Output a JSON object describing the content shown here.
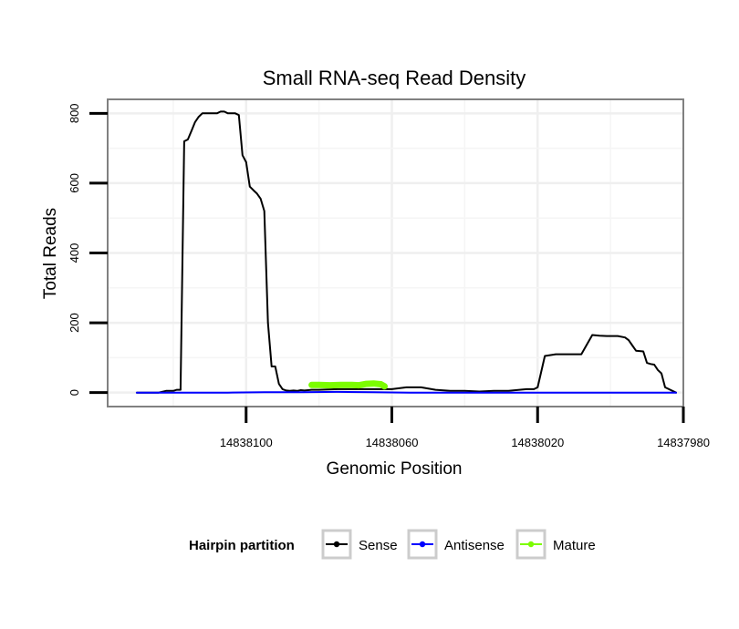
{
  "chart_data": {
    "type": "line",
    "title": "Small RNA-seq Read Density",
    "xlabel": "Genomic Position",
    "ylabel": "Total Reads",
    "xlim": [
      14838138,
      14837980
    ],
    "ylim": [
      -40,
      840
    ],
    "x_reversed": true,
    "grid": true,
    "xticks": [
      14838100,
      14838060,
      14838020,
      14837980
    ],
    "xtick_labels": [
      "14838100",
      "14838060",
      "14838020",
      "14837980"
    ],
    "yticks": [
      0,
      200,
      400,
      600,
      800
    ],
    "ytick_labels": [
      "0",
      "200",
      "400",
      "600",
      "800"
    ],
    "legend": {
      "title": "Hairpin partition",
      "position": "bottom",
      "entries": [
        "Sense",
        "Antisense",
        "Mature"
      ]
    },
    "series": [
      {
        "name": "Sense",
        "color": "#000000",
        "x": [
          14838130,
          14838124,
          14838122,
          14838120,
          14838119,
          14838118,
          14838117,
          14838116,
          14838115,
          14838114,
          14838113,
          14838112,
          14838111,
          14838110,
          14838109,
          14838108,
          14838107,
          14838106,
          14838105,
          14838104,
          14838103,
          14838102,
          14838101,
          14838100,
          14838099,
          14838098,
          14838097,
          14838096,
          14838095,
          14838094,
          14838093,
          14838092,
          14838091,
          14838090,
          14838089,
          14838088,
          14838087,
          14838086,
          14838085,
          14838084,
          14838083,
          14838082,
          14838080,
          14838075,
          14838070,
          14838065,
          14838060,
          14838056,
          14838052,
          14838048,
          14838044,
          14838040,
          14838036,
          14838032,
          14838028,
          14838025,
          14838023,
          14838022,
          14838021,
          14838020,
          14838018,
          14838015,
          14838013,
          14838012,
          14838011,
          14838010,
          14838008,
          14838005,
          14838003,
          14838001,
          14838000,
          14837999,
          14837998,
          14837996,
          14837995,
          14837994,
          14837993,
          14837991,
          14837990,
          14837989,
          14837988,
          14837987,
          14837986,
          14837985,
          14837982
        ],
        "values": [
          0,
          0,
          5,
          5,
          8,
          8,
          720,
          725,
          750,
          775,
          790,
          800,
          800,
          800,
          800,
          800,
          805,
          805,
          800,
          800,
          800,
          795,
          680,
          660,
          590,
          580,
          570,
          555,
          520,
          200,
          75,
          75,
          25,
          10,
          6,
          5,
          6,
          5,
          7,
          6,
          7,
          8,
          8,
          10,
          10,
          10,
          10,
          15,
          15,
          8,
          5,
          5,
          3,
          5,
          5,
          8,
          10,
          10,
          10,
          15,
          105,
          110,
          110,
          110,
          110,
          110,
          110,
          165,
          163,
          162,
          162,
          162,
          162,
          158,
          150,
          135,
          120,
          118,
          85,
          82,
          80,
          65,
          55,
          15,
          0
        ]
      },
      {
        "name": "Antisense",
        "color": "#0000ff",
        "x": [
          14838130,
          14838110,
          14838105,
          14838095,
          14838085,
          14838075,
          14838065,
          14838055,
          14838045,
          14838035,
          14838025,
          14838015,
          14838005,
          14837995,
          14837985,
          14837982
        ],
        "values": [
          0,
          0,
          0,
          1,
          1,
          2,
          1,
          0,
          0,
          0,
          0,
          0,
          0,
          0,
          0,
          0
        ]
      },
      {
        "name": "Mature",
        "color": "#7cfc00",
        "x": [
          14838082,
          14838080,
          14838077,
          14838074,
          14838071,
          14838069,
          14838067,
          14838065,
          14838063,
          14838062
        ],
        "values": [
          22,
          22,
          21,
          22,
          22,
          21,
          25,
          26,
          24,
          18
        ]
      }
    ]
  }
}
